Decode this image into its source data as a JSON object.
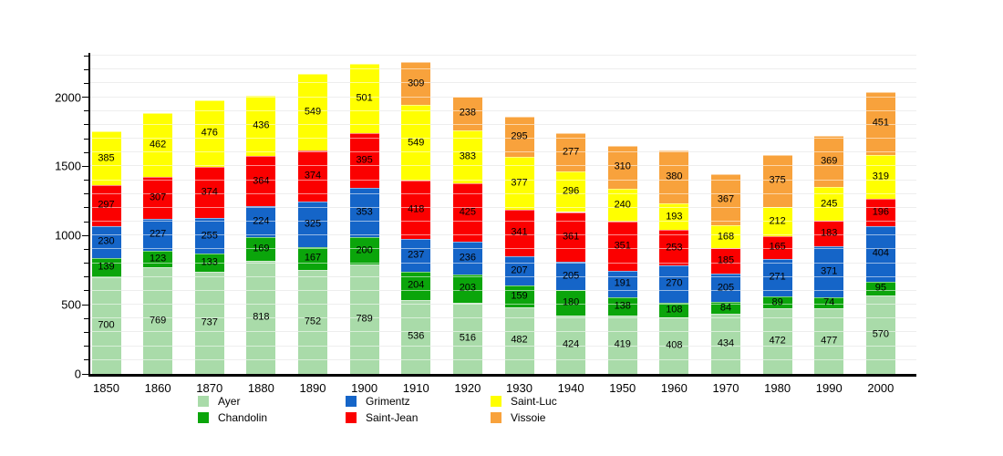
{
  "chart_data": {
    "type": "bar",
    "stacked": true,
    "title": "",
    "xlabel": "",
    "ylabel": "",
    "categories": [
      "1850",
      "1860",
      "1870",
      "1880",
      "1890",
      "1900",
      "1910",
      "1920",
      "1930",
      "1940",
      "1950",
      "1960",
      "1970",
      "1980",
      "1990",
      "2000"
    ],
    "series": [
      {
        "name": "Ayer",
        "color": "#a9dba9",
        "values": [
          700,
          769,
          737,
          818,
          752,
          789,
          536,
          516,
          482,
          424,
          419,
          408,
          434,
          472,
          477,
          570
        ]
      },
      {
        "name": "Chandolin",
        "color": "#0ba50b",
        "values": [
          139,
          123,
          133,
          169,
          167,
          200,
          204,
          203,
          159,
          180,
          138,
          108,
          84,
          89,
          74,
          95
        ]
      },
      {
        "name": "Grimentz",
        "color": "#1565c8",
        "values": [
          230,
          227,
          255,
          224,
          325,
          353,
          237,
          236,
          207,
          205,
          191,
          270,
          205,
          271,
          371,
          404
        ]
      },
      {
        "name": "Saint-Jean",
        "color": "#fb0000",
        "values": [
          297,
          307,
          374,
          364,
          374,
          395,
          418,
          425,
          341,
          361,
          351,
          253,
          185,
          165,
          183,
          196
        ]
      },
      {
        "name": "Saint-Luc",
        "color": "#ffff00",
        "values": [
          385,
          462,
          476,
          436,
          549,
          501,
          549,
          383,
          377,
          296,
          240,
          193,
          168,
          212,
          245,
          319
        ]
      },
      {
        "name": "Vissoie",
        "color": "#f8a23c",
        "values": [
          null,
          null,
          null,
          null,
          null,
          null,
          309,
          238,
          295,
          277,
          310,
          380,
          367,
          375,
          369,
          451
        ]
      }
    ],
    "ylim": [
      0,
      2320
    ],
    "yticks": [
      0,
      500,
      1000,
      1500,
      2000
    ],
    "minor_grid_step": 100,
    "grid": true,
    "grid_color": "#d9d9d9",
    "axis_color": "#000000",
    "legend_position": "bottom-left",
    "legend_columns": [
      [
        "Ayer",
        "Chandolin"
      ],
      [
        "Grimentz",
        "Saint-Jean"
      ],
      [
        "Saint-Luc",
        "Vissoie"
      ]
    ]
  }
}
